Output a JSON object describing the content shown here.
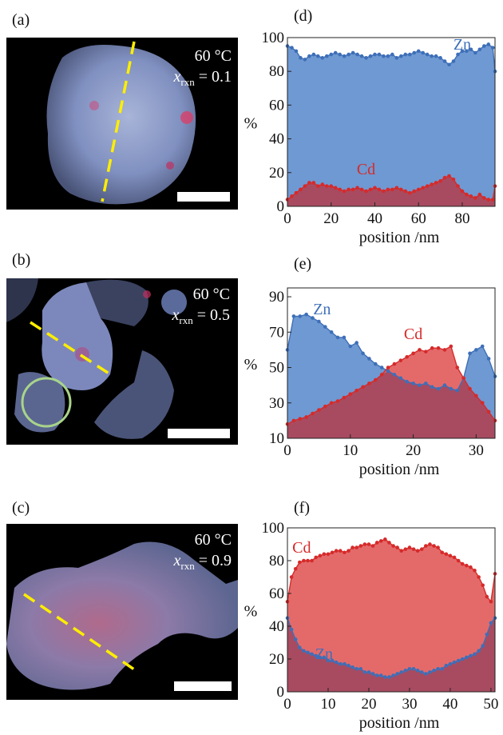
{
  "panels": {
    "a": {
      "label": "(a)",
      "temp": "60 °C",
      "xrxn_sym": "x",
      "xrxn_sub": "rxn",
      "xrxn_val": "= 0.1"
    },
    "b": {
      "label": "(b)",
      "temp": "60 °C",
      "xrxn_sym": "x",
      "xrxn_sub": "rxn",
      "xrxn_val": "= 0.5"
    },
    "c": {
      "label": "(c)",
      "temp": "60 °C",
      "xrxn_sym": "x",
      "xrxn_sub": "rxn",
      "xrxn_val": "= 0.9"
    }
  },
  "colors": {
    "zn": "#6f99d2",
    "zn_line": "#3e6fb8",
    "cd": "#e46a6a",
    "cd_line": "#d62a2a",
    "overlap": "#a84b60",
    "dash": "#ffee00",
    "circle": "#a8d48a"
  },
  "chart_data": [
    {
      "panel_label": "(d)",
      "type": "area",
      "xlabel": "position /nm",
      "ylabel": "%",
      "xlim": [
        0,
        95
      ],
      "ylim": [
        0,
        100
      ],
      "xticks": [
        0,
        20,
        40,
        60,
        80
      ],
      "yticks": [
        0,
        20,
        40,
        60,
        80,
        100
      ],
      "x": [
        0,
        2,
        4,
        6,
        8,
        10,
        12,
        14,
        16,
        18,
        20,
        22,
        24,
        26,
        28,
        30,
        32,
        34,
        36,
        38,
        40,
        42,
        44,
        46,
        48,
        50,
        52,
        54,
        56,
        58,
        60,
        62,
        64,
        66,
        68,
        70,
        72,
        74,
        76,
        78,
        80,
        82,
        84,
        86,
        88,
        90,
        92,
        94,
        95
      ],
      "series": [
        {
          "name": "Zn",
          "label_x": 80,
          "label_y": 93,
          "values": [
            95,
            94,
            92,
            88,
            87,
            89,
            90,
            89,
            88,
            89,
            90,
            91,
            90,
            89,
            90,
            91,
            90,
            89,
            88,
            89,
            90,
            90,
            89,
            89,
            90,
            88,
            89,
            90,
            90,
            91,
            92,
            91,
            90,
            89,
            89,
            88,
            86,
            84,
            86,
            90,
            92,
            92,
            93,
            91,
            93,
            95,
            96,
            94,
            80
          ]
        },
        {
          "name": "Cd",
          "label_x": 36,
          "label_y": 19,
          "values": [
            4,
            6,
            8,
            10,
            12,
            14,
            14,
            12,
            13,
            12,
            12,
            11,
            10,
            9,
            10,
            10,
            11,
            10,
            9,
            10,
            11,
            10,
            9,
            10,
            10,
            11,
            10,
            9,
            8,
            9,
            10,
            11,
            12,
            13,
            14,
            15,
            17,
            18,
            16,
            12,
            9,
            7,
            6,
            5,
            7,
            5,
            4,
            4,
            12
          ]
        }
      ]
    },
    {
      "panel_label": "(e)",
      "type": "area",
      "xlabel": "position /nm",
      "ylabel": "%",
      "xlim": [
        0,
        33
      ],
      "ylim": [
        10,
        95
      ],
      "xticks": [
        0,
        10,
        20,
        30
      ],
      "yticks": [
        10,
        30,
        50,
        70,
        90
      ],
      "x": [
        0,
        1,
        2,
        3,
        4,
        5,
        6,
        7,
        8,
        9,
        10,
        11,
        12,
        13,
        14,
        15,
        16,
        17,
        18,
        19,
        20,
        21,
        22,
        23,
        24,
        25,
        26,
        27,
        28,
        29,
        30,
        31,
        32,
        33
      ],
      "series": [
        {
          "name": "Zn",
          "label_x": 5.5,
          "label_y": 80,
          "values": [
            60,
            79,
            79,
            80,
            78,
            76,
            73,
            70,
            67,
            67,
            62,
            64,
            58,
            55,
            52,
            50,
            48,
            46,
            44,
            42,
            41,
            40,
            41,
            39,
            38,
            40,
            38,
            37,
            44,
            58,
            60,
            62,
            55,
            45
          ]
        },
        {
          "name": "Cd",
          "label_x": 20,
          "label_y": 66,
          "values": [
            18,
            20,
            21,
            22,
            24,
            26,
            28,
            30,
            31,
            33,
            35,
            37,
            39,
            41,
            43,
            46,
            50,
            52,
            54,
            56,
            58,
            60,
            59,
            61,
            61,
            60,
            62,
            50,
            44,
            38,
            34,
            30,
            25,
            20
          ]
        }
      ]
    },
    {
      "panel_label": "(f)",
      "type": "area",
      "xlabel": "position /nm",
      "ylabel": "%",
      "xlim": [
        0,
        51
      ],
      "ylim": [
        0,
        100
      ],
      "xticks": [
        0,
        10,
        20,
        30,
        40,
        50
      ],
      "yticks": [
        0,
        20,
        40,
        60,
        80,
        100
      ],
      "x": [
        0,
        1,
        2,
        3,
        4,
        5,
        6,
        7,
        8,
        9,
        10,
        11,
        12,
        13,
        14,
        15,
        16,
        17,
        18,
        19,
        20,
        21,
        22,
        23,
        24,
        25,
        26,
        27,
        28,
        29,
        30,
        31,
        32,
        33,
        34,
        35,
        36,
        37,
        38,
        39,
        40,
        41,
        42,
        43,
        44,
        45,
        46,
        47,
        48,
        49,
        50,
        51
      ],
      "series": [
        {
          "name": "Cd",
          "label_x": 3.5,
          "label_y": 85,
          "values": [
            55,
            70,
            75,
            79,
            80,
            80,
            80,
            82,
            83,
            84,
            84,
            85,
            86,
            86,
            85,
            86,
            88,
            88,
            89,
            90,
            90,
            89,
            91,
            92,
            93,
            91,
            89,
            88,
            86,
            87,
            88,
            87,
            86,
            87,
            89,
            90,
            89,
            88,
            85,
            84,
            83,
            82,
            80,
            78,
            77,
            76,
            74,
            70,
            65,
            58,
            55,
            72
          ]
        },
        {
          "name": "Zn",
          "label_x": 9,
          "label_y": 20,
          "values": [
            45,
            38,
            32,
            27,
            25,
            24,
            23,
            22,
            21,
            21,
            19,
            19,
            18,
            17,
            17,
            16,
            15,
            14,
            14,
            12,
            12,
            11,
            10,
            10,
            9,
            9,
            10,
            11,
            12,
            13,
            14,
            14,
            13,
            12,
            11,
            12,
            13,
            14,
            14,
            16,
            17,
            18,
            19,
            20,
            21,
            22,
            23,
            25,
            28,
            35,
            42,
            45
          ]
        }
      ]
    }
  ]
}
